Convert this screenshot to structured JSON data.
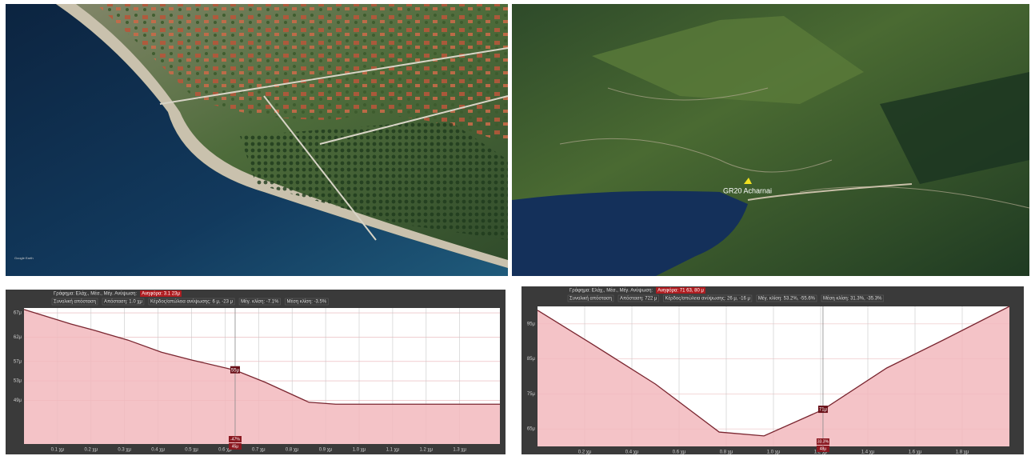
{
  "maps": [
    {
      "label": "Google Earth"
    },
    {
      "label": "GR20 Acharnai"
    }
  ],
  "chart_data": [
    {
      "type": "area",
      "header": "Γράφημα: Ελάχ., Μέσ., Μέγ. Ανύψωση:",
      "highlight": "Ανηφόρα: 3.1 23μ",
      "stats": [
        "Συνολική απόσταση",
        "Απόσταση: 1.0 χμ",
        "Κέρδος/απώλεια ανύψωσης: 6 μ, -23 μ",
        "Μέγ. κλίση: -7.1%",
        "Μέση κλίση: -3.5%"
      ],
      "color": "#7a2630",
      "fill": "#f2b8bd",
      "x": [
        0,
        0.14,
        0.21,
        0.31,
        0.41,
        0.5,
        0.63,
        0.72,
        0.85,
        0.93,
        1.42
      ],
      "values": [
        67.7,
        64.7,
        63.4,
        61.4,
        58.9,
        57.3,
        55.2,
        52.7,
        48.6,
        48.2,
        48.2
      ],
      "xlim": [
        0,
        1.42
      ],
      "ylim": [
        40,
        68
      ],
      "xticks": [
        {
          "value": 0.1,
          "label": "0.1 χμ"
        },
        {
          "value": 0.2,
          "label": "0.2 χμ"
        },
        {
          "value": 0.3,
          "label": "0.3 χμ"
        },
        {
          "value": 0.4,
          "label": "0.4 χμ"
        },
        {
          "value": 0.5,
          "label": "0.5 χμ"
        },
        {
          "value": 0.6,
          "label": "0.6 χμ"
        },
        {
          "value": 0.7,
          "label": "0.7 χμ"
        },
        {
          "value": 0.8,
          "label": "0.8 χμ"
        },
        {
          "value": 0.9,
          "label": "0.9 χμ"
        },
        {
          "value": 1.0,
          "label": "1.0 χμ"
        },
        {
          "value": 1.1,
          "label": "1.1 χμ"
        },
        {
          "value": 1.2,
          "label": "1.2 χμ"
        },
        {
          "value": 1.3,
          "label": "1.3 χμ"
        }
      ],
      "yticks": [
        {
          "value": 49,
          "label": "49μ"
        },
        {
          "value": 53,
          "label": "53μ"
        },
        {
          "value": 57,
          "label": "57μ"
        },
        {
          "value": 62,
          "label": "62μ"
        },
        {
          "value": 67,
          "label": "67μ"
        }
      ],
      "grid": true,
      "marker": {
        "x": 0.63,
        "value": 55.2,
        "label": "55μ",
        "bottom": [
          "-47%",
          "45μ"
        ]
      }
    },
    {
      "type": "area",
      "header": "Γράφημα: Ελάχ., Μέσ., Μέγ. Ανύψωση:",
      "highlight": "Ανηφόρα: 71 63, 80 μ",
      "stats": [
        "Συνολική απόσταση",
        "Απόσταση: 722 μ",
        "Κέρδος/απώλεια ανύψωσης: 26 μ, -16 μ",
        "Μέγ. κλίση: 53.2%, -55.6%",
        "Μέση κλίση: 31.3%, -35.3%"
      ],
      "color": "#7a2630",
      "fill": "#f2b8bd",
      "x": [
        0,
        0.23,
        0.5,
        0.77,
        0.96,
        1.21,
        1.48,
        1.72,
        2.0
      ],
      "values": [
        98.9,
        89.3,
        77.8,
        64.1,
        63.0,
        70.5,
        82.4,
        90.4,
        100
      ],
      "xlim": [
        0,
        2
      ],
      "ylim": [
        60,
        100
      ],
      "xticks": [
        {
          "value": 0.2,
          "label": "0.2 χμ"
        },
        {
          "value": 0.4,
          "label": "0.4 χμ"
        },
        {
          "value": 0.6,
          "label": "0.6 χμ"
        },
        {
          "value": 0.8,
          "label": "0.8 χμ"
        },
        {
          "value": 1.0,
          "label": "1.0 χμ"
        },
        {
          "value": 1.2,
          "label": "1.2 χμ"
        },
        {
          "value": 1.4,
          "label": "1.4 χμ"
        },
        {
          "value": 1.6,
          "label": "1.6 χμ"
        },
        {
          "value": 1.8,
          "label": "1.8 χμ"
        }
      ],
      "yticks": [
        {
          "value": 65,
          "label": "65μ"
        },
        {
          "value": 75,
          "label": "75μ"
        },
        {
          "value": 85,
          "label": "85μ"
        },
        {
          "value": 95,
          "label": "95μ"
        }
      ],
      "grid": true,
      "marker": {
        "x": 1.21,
        "value": 70.5,
        "label": "71μ",
        "bottom": [
          "33.3%",
          "48μ"
        ]
      }
    }
  ]
}
